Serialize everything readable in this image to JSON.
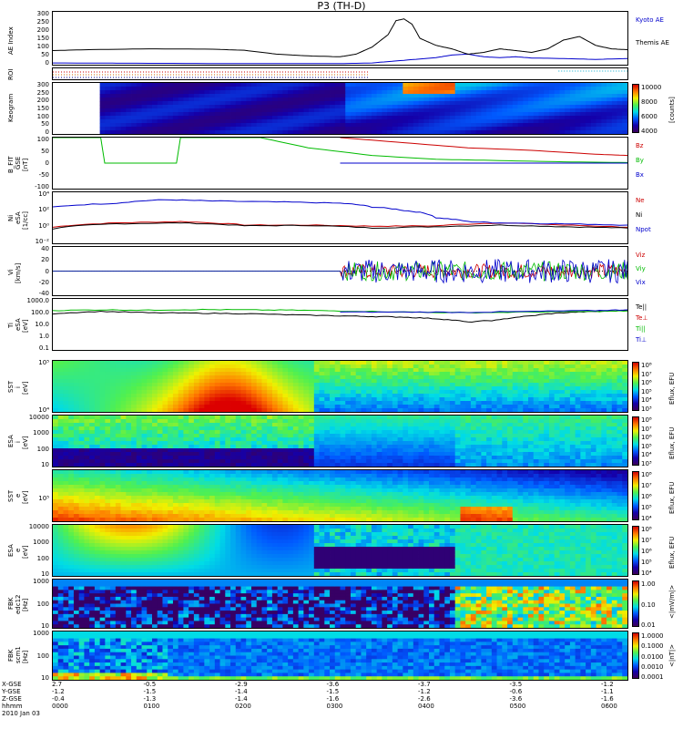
{
  "figure_title": "P3 (TH-D)",
  "chart_data": [
    {
      "type": "line",
      "panel": "ae",
      "ylabel": "AE Index",
      "yticks": [
        "300",
        "250",
        "200",
        "150",
        "100",
        "50",
        "0"
      ],
      "ylim": [
        0,
        300
      ],
      "series": [
        {
          "name": "Kyoto AE",
          "color": "#0000cc",
          "x": [
            0,
            60,
            120,
            180,
            200,
            220,
            240,
            250,
            260,
            270,
            280,
            290,
            300,
            320,
            340,
            360
          ],
          "y": [
            10,
            8,
            6,
            6,
            10,
            25,
            40,
            55,
            60,
            45,
            40,
            45,
            38,
            35,
            30,
            35
          ]
        },
        {
          "name": "Themis AE",
          "color": "#000000",
          "x": [
            0,
            20,
            60,
            100,
            120,
            140,
            160,
            180,
            190,
            200,
            210,
            215,
            220,
            225,
            230,
            240,
            250,
            260,
            270,
            280,
            290,
            300,
            310,
            320,
            330,
            340,
            350,
            360
          ],
          "y": [
            80,
            85,
            90,
            88,
            82,
            60,
            50,
            45,
            60,
            100,
            170,
            250,
            260,
            230,
            150,
            110,
            90,
            60,
            70,
            90,
            80,
            70,
            90,
            140,
            160,
            110,
            90,
            85
          ]
        }
      ]
    },
    {
      "type": "line",
      "panel": "roi",
      "ylabel": "ROI"
    },
    {
      "type": "heatmap",
      "panel": "keogram",
      "ylabel": "Keogram",
      "yticks": [
        "300",
        "250",
        "200",
        "150",
        "100",
        "50",
        "0"
      ],
      "colorbar": {
        "ticks": [
          "10000",
          "8000",
          "6000",
          "4000"
        ],
        "unit": "[counts]"
      }
    },
    {
      "type": "line",
      "panel": "bfit",
      "ylabel": "B_FIT\nGSE\n[nT]",
      "yticks": [
        "100",
        "50",
        "0",
        "-50",
        "-100"
      ],
      "ylim": [
        -100,
        100
      ],
      "series": [
        {
          "name": "Bz",
          "color": "#cc0000",
          "x": [
            180,
            220,
            260,
            300,
            340,
            360
          ],
          "y": [
            100,
            80,
            60,
            50,
            35,
            30
          ]
        },
        {
          "name": "By",
          "color": "#00bb00",
          "x": [
            0,
            30,
            35,
            75,
            80,
            130,
            160,
            200,
            240,
            280,
            320,
            360
          ],
          "y": [
            100,
            100,
            -100,
            -100,
            100,
            100,
            60,
            30,
            15,
            10,
            5,
            2
          ]
        },
        {
          "name": "Bx",
          "color": "#0000cc",
          "x": [
            180,
            220,
            260,
            300,
            340,
            360
          ],
          "y": [
            -100,
            -80,
            -60,
            -45,
            -30,
            -20
          ]
        }
      ]
    },
    {
      "type": "line",
      "panel": "ni",
      "ylabel": "Ni\neSA\n[1/cc]",
      "yticks": [
        "10⁴",
        "10²",
        "10⁰",
        "10⁻²"
      ],
      "ylog": true,
      "series": [
        {
          "name": "Ne",
          "color": "#cc0000",
          "x": [
            0,
            40,
            80,
            120,
            160,
            200,
            240,
            280,
            320,
            360
          ],
          "y": [
            0.5,
            2,
            3,
            1,
            1,
            0.7,
            0.8,
            2,
            1,
            0.5
          ]
        },
        {
          "name": "Ni",
          "color": "#000000",
          "x": [
            0,
            40,
            80,
            120,
            160,
            200,
            240,
            280,
            320,
            360
          ],
          "y": [
            0.3,
            1.5,
            2,
            0.8,
            0.9,
            0.4,
            0.6,
            1,
            0.6,
            0.4
          ]
        },
        {
          "name": "Npot",
          "color": "#0000cc",
          "x": [
            0,
            40,
            70,
            100,
            140,
            180,
            200,
            220,
            240,
            260,
            280,
            320,
            360
          ],
          "y": [
            300,
            1000,
            3000,
            2000,
            1500,
            1000,
            300,
            100,
            10,
            3,
            2,
            1.5,
            1
          ]
        }
      ]
    },
    {
      "type": "line",
      "panel": "vi",
      "ylabel": "Vi\n[km/s]",
      "yticks": [
        "40",
        "20",
        "0",
        "-20",
        "-40"
      ],
      "ylim": [
        -50,
        50
      ],
      "series": [
        {
          "name": "Viz",
          "color": "#cc0000"
        },
        {
          "name": "Viy",
          "color": "#00bb00"
        },
        {
          "name": "Vix",
          "color": "#0000cc"
        }
      ]
    },
    {
      "type": "line",
      "panel": "ti",
      "ylabel": "Ti\neSA\n[eV]",
      "yticks": [
        "1000.0",
        "100.0",
        "10.0",
        "1.0",
        "0.1"
      ],
      "ylog": true,
      "series": [
        {
          "name": "Te||",
          "color": "#000000",
          "x": [
            0,
            30,
            60,
            90,
            120,
            150,
            180,
            200,
            220,
            240,
            260,
            280,
            300,
            320,
            340,
            360
          ],
          "y": [
            300,
            600,
            400,
            350,
            300,
            200,
            150,
            120,
            100,
            60,
            20,
            40,
            150,
            400,
            600,
            800
          ]
        },
        {
          "name": "Te⊥",
          "color": "#cc0000"
        },
        {
          "name": "Ti||",
          "color": "#00bb00",
          "x": [
            0,
            30,
            60,
            90,
            120,
            150,
            180,
            220,
            260,
            300,
            340,
            360
          ],
          "y": [
            800,
            1000,
            900,
            1100,
            1000,
            900,
            700,
            500,
            400,
            500,
            600,
            700
          ]
        },
        {
          "name": "Ti⊥",
          "color": "#0000cc",
          "x": [
            180,
            220,
            260,
            300,
            340,
            360
          ],
          "y": [
            500,
            500,
            450,
            600,
            800,
            1000
          ]
        }
      ]
    },
    {
      "type": "heatmap",
      "panel": "sst_i",
      "ylabel": "SST\ni\n[eV]",
      "yticks": [
        "10⁵",
        "10⁴"
      ],
      "colorbar": {
        "ticks": [
          "10⁸",
          "10⁷",
          "10⁶",
          "10⁵",
          "10⁴",
          "10³"
        ],
        "unit": "Eflux, EFU"
      }
    },
    {
      "type": "heatmap",
      "panel": "esa_i",
      "ylabel": "ESA\ni\n[eV]",
      "yticks": [
        "10000",
        "1000",
        "100",
        "10"
      ],
      "colorbar": {
        "ticks": [
          "10⁸",
          "10⁷",
          "10⁶",
          "10⁵",
          "10⁴",
          "10³"
        ],
        "unit": "Eflux, EFU"
      }
    },
    {
      "type": "heatmap",
      "panel": "sst_e",
      "ylabel": "SST\ne\n[eV]",
      "yticks": [
        "10⁵"
      ],
      "colorbar": {
        "ticks": [
          "10⁸",
          "10⁷",
          "10⁶",
          "10⁵",
          "10⁴"
        ],
        "unit": "Eflux, EFU"
      }
    },
    {
      "type": "heatmap",
      "panel": "esa_e",
      "ylabel": "ESA\ne\n[eV]",
      "yticks": [
        "10000",
        "1000",
        "100",
        "10"
      ],
      "colorbar": {
        "ticks": [
          "10⁸",
          "10⁷",
          "10⁶",
          "10⁵",
          "10⁴"
        ],
        "unit": "Eflux, EFU"
      }
    },
    {
      "type": "heatmap",
      "panel": "fbk_e",
      "ylabel": "FBK\nedc12\n[Hz]",
      "yticks": [
        "1000",
        "100",
        "10"
      ],
      "colorbar": {
        "ticks": [
          "1.00",
          "0.10",
          "0.01"
        ],
        "unit": "<|mV/m|>"
      }
    },
    {
      "type": "heatmap",
      "panel": "fbk_b",
      "ylabel": "FBK\nscm1\n[Hz]",
      "yticks": [
        "1000",
        "100",
        "10"
      ],
      "colorbar": {
        "ticks": [
          "1.0000",
          "0.1000",
          "0.0100",
          "0.0010",
          "0.0001"
        ],
        "unit": "<|nT|>"
      }
    }
  ],
  "bottom_axis": {
    "row_labels": [
      "X-GSE",
      "Y-GSE",
      "Z-GSE",
      "hhmm",
      "2010 Jan 03"
    ],
    "columns": [
      {
        "x": "2.7",
        "y": "-1.2",
        "z": "-0.4",
        "t": "0000"
      },
      {
        "x": "-0.5",
        "y": "-1.5",
        "z": "-1.3",
        "t": "0100"
      },
      {
        "x": "-2.9",
        "y": "-1.4",
        "z": "-1.4",
        "t": "0200"
      },
      {
        "x": "-3.6",
        "y": "-1.5",
        "z": "-1.6",
        "t": "0300"
      },
      {
        "x": "-3.7",
        "y": "-1.2",
        "z": "-2.6",
        "t": "0400"
      },
      {
        "x": "-3.5",
        "y": "-0.6",
        "z": "-3.6",
        "t": "0500"
      },
      {
        "x": "-1.2",
        "y": "-1.1",
        "z": "-1.6",
        "t": "0600"
      }
    ]
  }
}
